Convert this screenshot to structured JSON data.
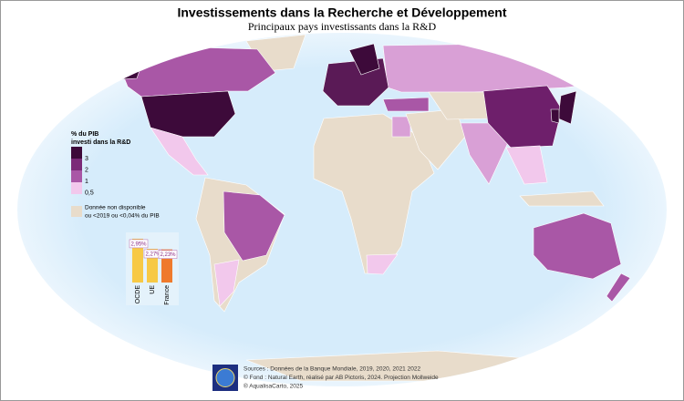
{
  "header": {
    "title": "Investissements dans la Recherche et Développement",
    "subtitle": "Principaux pays investissants dans la R&D"
  },
  "legend": {
    "title": [
      "% du PIB",
      "investi dans la R&D"
    ],
    "items": [
      {
        "label": "3",
        "color": "#3d0a3a"
      },
      {
        "label": "2",
        "color": "#7b2a78"
      },
      {
        "label": "1",
        "color": "#a957a6"
      },
      {
        "label": "0,5",
        "color": "#f2c8ec"
      }
    ],
    "no_data": {
      "lines": [
        "Donnée non disponible",
        "ou <2019 ou <0,04% du PIB"
      ],
      "color": "#e8dccb"
    }
  },
  "inset_chart": {
    "type": "bar",
    "categories": [
      "OCDE",
      "UE",
      "France"
    ],
    "values": [
      2.95,
      2.27,
      2.23
    ],
    "value_labels": [
      "2,95%",
      "2,27%",
      "2,23%"
    ],
    "colors": [
      "#f7c945",
      "#f7c945",
      "#ef7a2c"
    ]
  },
  "footer": {
    "lines": [
      "Sources : Données de la Banque Mondiale, 2019, 2020, 2021 2022",
      "© Fond : Natural Earth, réalisé par AB Pictoris, 2024. Projection Mollweide",
      "® AqualisaCarto, 2025"
    ]
  }
}
